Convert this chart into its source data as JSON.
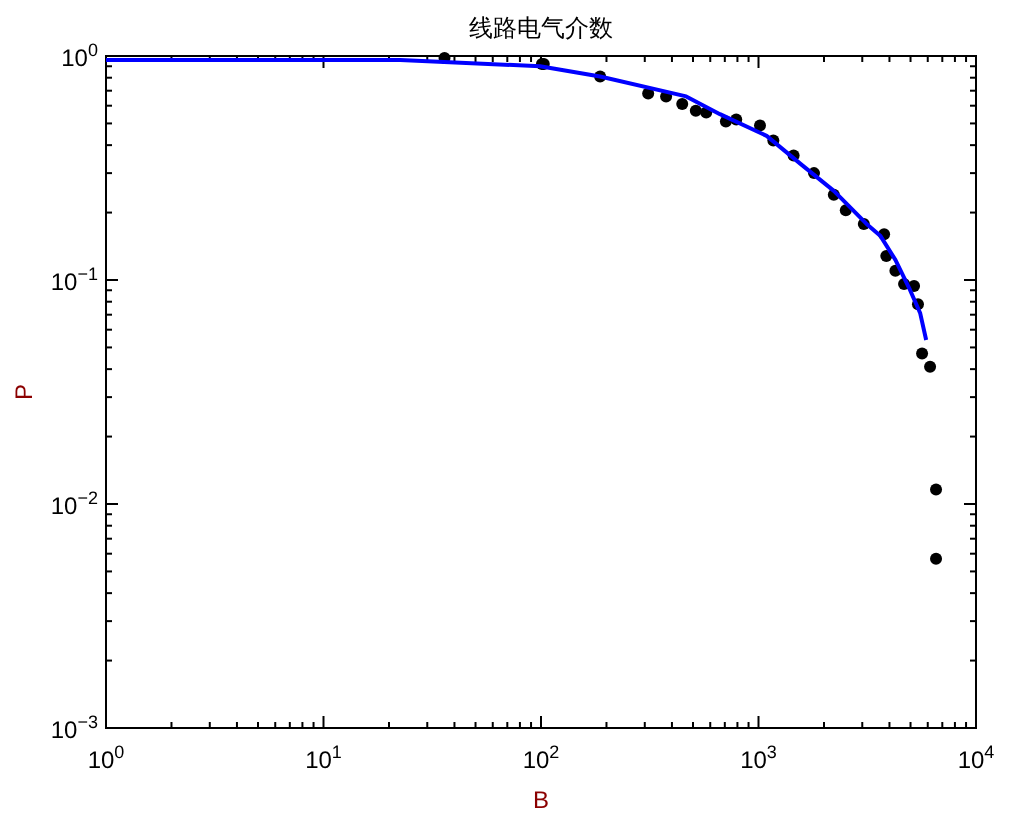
{
  "chart_data": {
    "type": "scatter",
    "title": "线路电气介数",
    "xlabel": "B",
    "ylabel": "P",
    "log": "xy",
    "grid": false,
    "xlim": [
      1,
      10000
    ],
    "ylim": [
      0.001,
      1
    ],
    "xticks": [
      {
        "value": 1,
        "label": "10$^{0}$"
      },
      {
        "value": 10,
        "label": "10$^{1}$"
      },
      {
        "value": 100,
        "label": "10$^{2}$"
      },
      {
        "value": 1000,
        "label": "10$^{3}$"
      },
      {
        "value": 10000,
        "label": "10$^{4}$"
      }
    ],
    "yticks": [
      {
        "value": 0.001,
        "label": "10$^{−3}$"
      },
      {
        "value": 0.01,
        "label": "10$^{−2}$"
      },
      {
        "value": 0.1,
        "label": "10$^{−1}$"
      },
      {
        "value": 1,
        "label": "10$^{0}$"
      }
    ],
    "series": [
      {
        "color": "#000000",
        "marker": "circle",
        "x": [
          36,
          101,
          103,
          187,
          311,
          376,
          446,
          515,
          575,
          708,
          790,
          1016,
          1170,
          1450,
          1800,
          2220,
          2520,
          3050,
          3780,
          3870,
          4260,
          4670,
          5190,
          5410,
          5650,
          6150,
          6550,
          6550
        ],
        "values": [
          0.98,
          0.92,
          0.92,
          0.81,
          0.68,
          0.66,
          0.61,
          0.57,
          0.56,
          0.51,
          0.52,
          0.49,
          0.42,
          0.36,
          0.3,
          0.24,
          0.205,
          0.178,
          0.16,
          0.128,
          0.11,
          0.096,
          0.094,
          0.078,
          0.047,
          0.041,
          0.0116,
          0.0057
        ]
      },
      {
        "type": "line",
        "color": "#0000ff",
        "marker": "none",
        "line_style": "solid",
        "x": [
          1,
          22.5,
          99,
          187,
          465,
          665,
          1090,
          1560,
          2220,
          3140,
          3640,
          4260,
          4980,
          5540,
          5900
        ],
        "values": [
          0.96,
          0.96,
          0.9,
          0.81,
          0.66,
          0.55,
          0.44,
          0.33,
          0.25,
          0.178,
          0.157,
          0.123,
          0.09,
          0.071,
          0.054
        ]
      }
    ]
  }
}
